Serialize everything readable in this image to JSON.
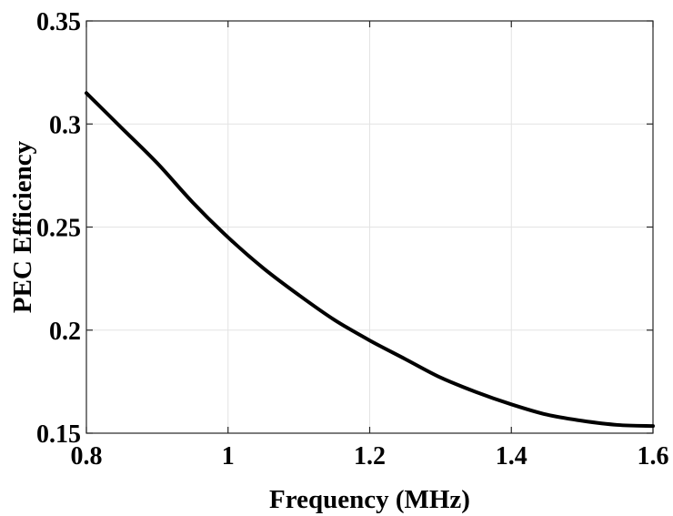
{
  "chart_data": {
    "type": "line",
    "title": "",
    "xlabel": "Frequency (MHz)",
    "ylabel": "PEC Efficiency",
    "xlim": [
      0.8,
      1.6
    ],
    "ylim": [
      0.15,
      0.35
    ],
    "grid": true,
    "x_ticks": [
      {
        "value": 0.8,
        "label": "0.8"
      },
      {
        "value": 1.0,
        "label": "1"
      },
      {
        "value": 1.2,
        "label": "1.2"
      },
      {
        "value": 1.4,
        "label": "1.4"
      },
      {
        "value": 1.6,
        "label": "1.6"
      }
    ],
    "y_ticks": [
      {
        "value": 0.15,
        "label": "0.15"
      },
      {
        "value": 0.2,
        "label": "0.2"
      },
      {
        "value": 0.25,
        "label": "0.25"
      },
      {
        "value": 0.3,
        "label": "0.3"
      },
      {
        "value": 0.35,
        "label": "0.35"
      }
    ],
    "series": [
      {
        "color": "#000000",
        "x": [
          0.8,
          0.85,
          0.9,
          0.95,
          1.0,
          1.05,
          1.1,
          1.15,
          1.2,
          1.25,
          1.3,
          1.35,
          1.4,
          1.45,
          1.5,
          1.55,
          1.6
        ],
        "y": [
          0.315,
          0.298,
          0.281,
          0.262,
          0.245,
          0.23,
          0.217,
          0.205,
          0.195,
          0.186,
          0.177,
          0.17,
          0.164,
          0.159,
          0.156,
          0.154,
          0.1535
        ]
      }
    ]
  }
}
